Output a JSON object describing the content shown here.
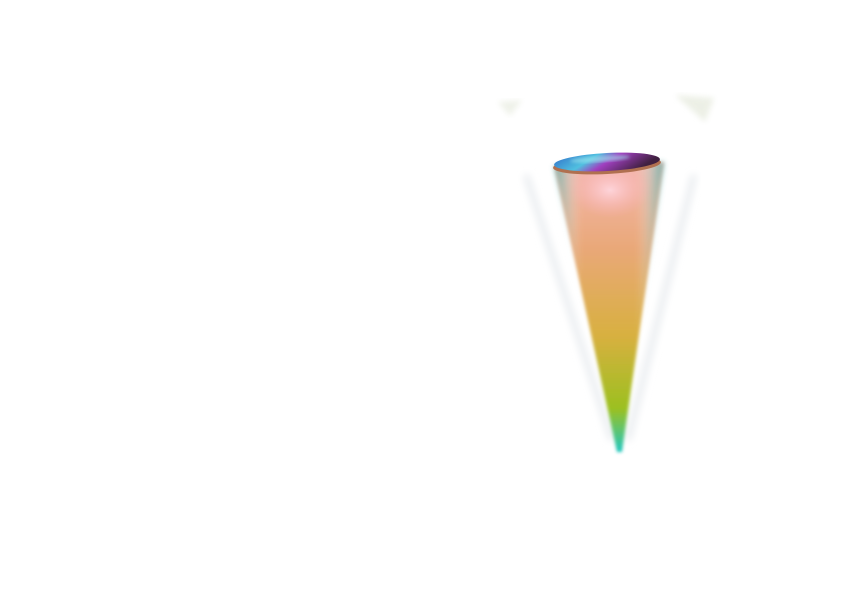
{
  "scene": {
    "background": "#ffffff",
    "cone_colors": {
      "top": "#f4b8b0",
      "upper": "#e9a878",
      "middle": "#d8b040",
      "lower": "#9cc020",
      "tip": "#20c8c0",
      "edge": "#30a8a0"
    },
    "disc_colors": [
      "#3070c8",
      "#50c0e0",
      "#a040c0",
      "#402040",
      "#c08050"
    ],
    "ghost_color": "#e8ece0"
  }
}
